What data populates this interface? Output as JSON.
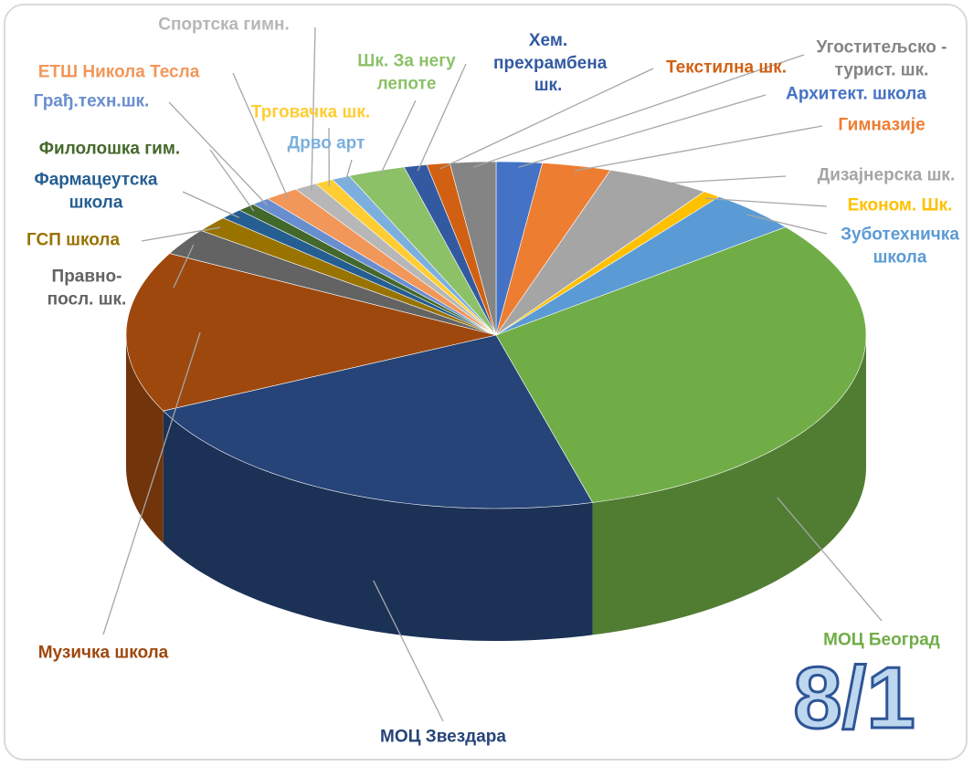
{
  "chart_data": {
    "type": "pie3d",
    "annotation": "8/1",
    "categories": [
      "Архитект. школа",
      "Гимназије",
      "Дизајнерска шк.",
      "Економ. Шк.",
      "Зуботехничка школа",
      "МОЦ Београд",
      "МОЦ Звездара",
      "Музичка школа",
      "Правно-посл. шк.",
      "ГСП школа",
      "Фармацеутска школа",
      "Филолошка гим.",
      "Грађ.техн.шк.",
      "ЕТШ Никола Тесла",
      "Спортска гимн.",
      "Трговачка шк.",
      "Дрво арт",
      "Шк. За негу лепоте",
      "Хем. прехрамбена шк.",
      "Текстилна шк.",
      "Угоститељско - турист. шк."
    ],
    "values": [
      2,
      3,
      4.5,
      0.8,
      4,
      31.5,
      22,
      15,
      2.5,
      1.5,
      1,
      0.8,
      0.8,
      1.5,
      1,
      0.8,
      0.8,
      2.5,
      1,
      1,
      2
    ],
    "colors": [
      "#4472c4",
      "#ed7d31",
      "#a5a5a5",
      "#ffc000",
      "#5b9bd5",
      "#70ad47",
      "#264478",
      "#9e480e",
      "#636363",
      "#997300",
      "#255e91",
      "#43682b",
      "#698ed0",
      "#f1975a",
      "#b7b7b7",
      "#ffcd33",
      "#7cafdd",
      "#8cc168",
      "#335aa1",
      "#d26012",
      "#848484"
    ]
  }
}
